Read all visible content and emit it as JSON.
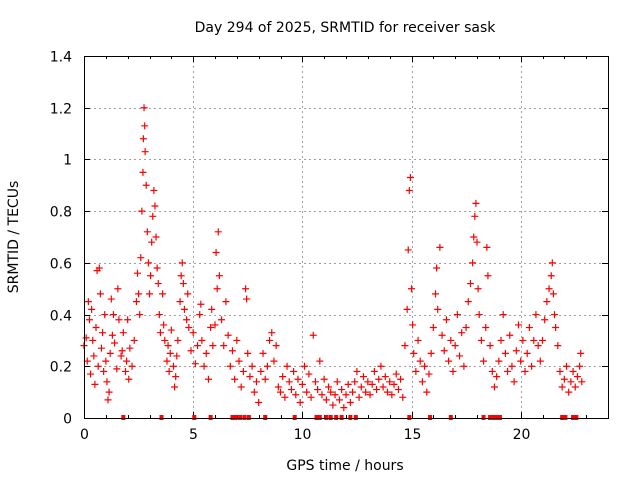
{
  "chart_data": {
    "type": "scatter",
    "title": "Day 294 of 2025, SRMTID for receiver sask",
    "xlabel": "GPS time / hours",
    "ylabel": "SRMTID / TECUs",
    "xlim": [
      0,
      24
    ],
    "ylim": [
      0,
      1.4
    ],
    "x_ticks": [
      0,
      5,
      10,
      15,
      20
    ],
    "y_ticks": [
      0,
      0.2,
      0.4,
      0.6,
      0.8,
      1,
      1.2,
      1.4
    ],
    "x_tick_labels": [
      "0",
      "5",
      "10",
      "15",
      "20"
    ],
    "y_tick_labels": [
      "0",
      "0.2",
      "0.4",
      "0.6",
      "0.8",
      "1",
      "1.2",
      "1.4"
    ],
    "grid": true,
    "marker": "+",
    "color": "#ff0000",
    "series": [
      {
        "name": "SRMTID",
        "points": [
          [
            0.0,
            0.28
          ],
          [
            0.1,
            0.31
          ],
          [
            0.15,
            0.22
          ],
          [
            0.2,
            0.45
          ],
          [
            0.25,
            0.38
          ],
          [
            0.3,
            0.17
          ],
          [
            0.35,
            0.42
          ],
          [
            0.4,
            0.3
          ],
          [
            0.45,
            0.24
          ],
          [
            0.5,
            0.13
          ],
          [
            0.55,
            0.35
          ],
          [
            0.6,
            0.57
          ],
          [
            0.65,
            0.2
          ],
          [
            0.7,
            0.58
          ],
          [
            0.75,
            0.48
          ],
          [
            0.8,
            0.27
          ],
          [
            0.85,
            0.33
          ],
          [
            0.9,
            0.18
          ],
          [
            0.95,
            0.4
          ],
          [
            1.0,
            0.22
          ],
          [
            1.05,
            0.14
          ],
          [
            1.1,
            0.07
          ],
          [
            1.15,
            0.1
          ],
          [
            1.2,
            0.25
          ],
          [
            1.25,
            0.46
          ],
          [
            1.3,
            0.32
          ],
          [
            1.35,
            0.4
          ],
          [
            1.4,
            0.29
          ],
          [
            1.5,
            0.19
          ],
          [
            1.55,
            0.5
          ],
          [
            1.6,
            0.38
          ],
          [
            1.7,
            0.24
          ],
          [
            1.75,
            0.26
          ],
          [
            1.8,
            0.33
          ],
          [
            1.9,
            0.18
          ],
          [
            1.95,
            0.22
          ],
          [
            2.0,
            0.38
          ],
          [
            2.05,
            0.15
          ],
          [
            2.1,
            0.27
          ],
          [
            2.2,
            0.2
          ],
          [
            2.3,
            0.3
          ],
          [
            2.4,
            0.45
          ],
          [
            2.45,
            0.56
          ],
          [
            2.5,
            0.48
          ],
          [
            2.55,
            0.4
          ],
          [
            2.6,
            0.62
          ],
          [
            2.65,
            0.8
          ],
          [
            2.7,
            0.95
          ],
          [
            2.72,
            1.08
          ],
          [
            2.75,
            1.2
          ],
          [
            2.78,
            1.13
          ],
          [
            2.8,
            1.03
          ],
          [
            2.85,
            0.9
          ],
          [
            2.9,
            0.72
          ],
          [
            2.95,
            0.6
          ],
          [
            3.0,
            0.48
          ],
          [
            3.05,
            0.55
          ],
          [
            3.1,
            0.68
          ],
          [
            3.15,
            0.78
          ],
          [
            3.2,
            0.88
          ],
          [
            3.25,
            0.82
          ],
          [
            3.3,
            0.7
          ],
          [
            3.35,
            0.58
          ],
          [
            3.4,
            0.52
          ],
          [
            3.45,
            0.4
          ],
          [
            3.5,
            0.33
          ],
          [
            3.6,
            0.48
          ],
          [
            3.65,
            0.36
          ],
          [
            3.7,
            0.3
          ],
          [
            3.8,
            0.22
          ],
          [
            3.85,
            0.28
          ],
          [
            3.9,
            0.18
          ],
          [
            3.95,
            0.25
          ],
          [
            4.0,
            0.34
          ],
          [
            4.1,
            0.2
          ],
          [
            4.15,
            0.12
          ],
          [
            4.2,
            0.16
          ],
          [
            4.25,
            0.24
          ],
          [
            4.3,
            0.3
          ],
          [
            4.4,
            0.45
          ],
          [
            4.45,
            0.55
          ],
          [
            4.5,
            0.6
          ],
          [
            4.55,
            0.52
          ],
          [
            4.6,
            0.42
          ],
          [
            4.7,
            0.38
          ],
          [
            4.75,
            0.48
          ],
          [
            4.8,
            0.35
          ],
          [
            4.9,
            0.26
          ],
          [
            5.0,
            0.33
          ],
          [
            5.1,
            0.21
          ],
          [
            5.2,
            0.28
          ],
          [
            5.3,
            0.4
          ],
          [
            5.35,
            0.44
          ],
          [
            5.4,
            0.3
          ],
          [
            5.5,
            0.2
          ],
          [
            5.6,
            0.25
          ],
          [
            5.7,
            0.15
          ],
          [
            5.8,
            0.35
          ],
          [
            5.85,
            0.42
          ],
          [
            5.9,
            0.28
          ],
          [
            6.0,
            0.36
          ],
          [
            6.05,
            0.64
          ],
          [
            6.1,
            0.5
          ],
          [
            6.15,
            0.72
          ],
          [
            6.2,
            0.55
          ],
          [
            6.3,
            0.38
          ],
          [
            6.4,
            0.28
          ],
          [
            6.5,
            0.45
          ],
          [
            6.6,
            0.32
          ],
          [
            6.7,
            0.2
          ],
          [
            6.8,
            0.26
          ],
          [
            6.9,
            0.15
          ],
          [
            7.0,
            0.3
          ],
          [
            7.1,
            0.22
          ],
          [
            7.2,
            0.12
          ],
          [
            7.3,
            0.18
          ],
          [
            7.4,
            0.5
          ],
          [
            7.45,
            0.46
          ],
          [
            7.5,
            0.25
          ],
          [
            7.6,
            0.16
          ],
          [
            7.7,
            0.2
          ],
          [
            7.8,
            0.1
          ],
          [
            7.9,
            0.14
          ],
          [
            8.0,
            0.06
          ],
          [
            8.1,
            0.18
          ],
          [
            8.2,
            0.25
          ],
          [
            8.3,
            0.15
          ],
          [
            8.4,
            0.2
          ],
          [
            8.5,
            0.3
          ],
          [
            8.6,
            0.33
          ],
          [
            8.7,
            0.22
          ],
          [
            8.8,
            0.28
          ],
          [
            8.9,
            0.12
          ],
          [
            9.0,
            0.1
          ],
          [
            9.1,
            0.16
          ],
          [
            9.2,
            0.08
          ],
          [
            9.3,
            0.2
          ],
          [
            9.4,
            0.14
          ],
          [
            9.5,
            0.11
          ],
          [
            9.6,
            0.18
          ],
          [
            9.7,
            0.09
          ],
          [
            9.8,
            0.15
          ],
          [
            9.9,
            0.06
          ],
          [
            10.0,
            0.13
          ],
          [
            10.1,
            0.2
          ],
          [
            10.2,
            0.1
          ],
          [
            10.3,
            0.17
          ],
          [
            10.4,
            0.08
          ],
          [
            10.5,
            0.32
          ],
          [
            10.6,
            0.14
          ],
          [
            10.7,
            0.11
          ],
          [
            10.8,
            0.22
          ],
          [
            10.9,
            0.09
          ],
          [
            11.0,
            0.15
          ],
          [
            11.1,
            0.07
          ],
          [
            11.2,
            0.12
          ],
          [
            11.3,
            0.1
          ],
          [
            11.4,
            0.05
          ],
          [
            11.5,
            0.09
          ],
          [
            11.6,
            0.14
          ],
          [
            11.7,
            0.07
          ],
          [
            11.8,
            0.11
          ],
          [
            11.9,
            0.04
          ],
          [
            12.0,
            0.09
          ],
          [
            12.1,
            0.13
          ],
          [
            12.2,
            0.06
          ],
          [
            12.3,
            0.1
          ],
          [
            12.4,
            0.14
          ],
          [
            12.5,
            0.18
          ],
          [
            12.6,
            0.08
          ],
          [
            12.7,
            0.12
          ],
          [
            12.8,
            0.16
          ],
          [
            12.9,
            0.1
          ],
          [
            13.0,
            0.14
          ],
          [
            13.1,
            0.09
          ],
          [
            13.2,
            0.13
          ],
          [
            13.3,
            0.18
          ],
          [
            13.4,
            0.11
          ],
          [
            13.5,
            0.15
          ],
          [
            13.6,
            0.2
          ],
          [
            13.7,
            0.12
          ],
          [
            13.8,
            0.16
          ],
          [
            13.9,
            0.1
          ],
          [
            14.0,
            0.14
          ],
          [
            14.1,
            0.09
          ],
          [
            14.2,
            0.13
          ],
          [
            14.3,
            0.17
          ],
          [
            14.4,
            0.11
          ],
          [
            14.5,
            0.15
          ],
          [
            14.6,
            0.08
          ],
          [
            14.7,
            0.28
          ],
          [
            14.8,
            0.42
          ],
          [
            14.85,
            0.65
          ],
          [
            14.9,
            0.88
          ],
          [
            14.95,
            0.93
          ],
          [
            15.0,
            0.5
          ],
          [
            15.05,
            0.36
          ],
          [
            15.1,
            0.25
          ],
          [
            15.2,
            0.18
          ],
          [
            15.3,
            0.3
          ],
          [
            15.4,
            0.22
          ],
          [
            15.5,
            0.14
          ],
          [
            15.6,
            0.2
          ],
          [
            15.7,
            0.1
          ],
          [
            15.8,
            0.17
          ],
          [
            15.9,
            0.25
          ],
          [
            16.0,
            0.35
          ],
          [
            16.1,
            0.48
          ],
          [
            16.15,
            0.58
          ],
          [
            16.2,
            0.42
          ],
          [
            16.3,
            0.66
          ],
          [
            16.4,
            0.32
          ],
          [
            16.5,
            0.26
          ],
          [
            16.6,
            0.38
          ],
          [
            16.7,
            0.22
          ],
          [
            16.8,
            0.3
          ],
          [
            16.9,
            0.18
          ],
          [
            17.0,
            0.28
          ],
          [
            17.1,
            0.4
          ],
          [
            17.2,
            0.24
          ],
          [
            17.3,
            0.33
          ],
          [
            17.4,
            0.2
          ],
          [
            17.5,
            0.35
          ],
          [
            17.6,
            0.45
          ],
          [
            17.7,
            0.52
          ],
          [
            17.8,
            0.6
          ],
          [
            17.85,
            0.7
          ],
          [
            17.9,
            0.78
          ],
          [
            17.95,
            0.83
          ],
          [
            18.0,
            0.68
          ],
          [
            18.05,
            0.5
          ],
          [
            18.1,
            0.4
          ],
          [
            18.2,
            0.3
          ],
          [
            18.3,
            0.22
          ],
          [
            18.4,
            0.35
          ],
          [
            18.45,
            0.66
          ],
          [
            18.5,
            0.55
          ],
          [
            18.6,
            0.28
          ],
          [
            18.7,
            0.18
          ],
          [
            18.8,
            0.12
          ],
          [
            18.9,
            0.16
          ],
          [
            19.0,
            0.22
          ],
          [
            19.1,
            0.3
          ],
          [
            19.2,
            0.4
          ],
          [
            19.3,
            0.25
          ],
          [
            19.4,
            0.18
          ],
          [
            19.5,
            0.32
          ],
          [
            19.6,
            0.2
          ],
          [
            19.7,
            0.14
          ],
          [
            19.8,
            0.26
          ],
          [
            19.9,
            0.36
          ],
          [
            20.0,
            0.22
          ],
          [
            20.1,
            0.3
          ],
          [
            20.2,
            0.18
          ],
          [
            20.3,
            0.25
          ],
          [
            20.4,
            0.35
          ],
          [
            20.5,
            0.2
          ],
          [
            20.6,
            0.3
          ],
          [
            20.7,
            0.4
          ],
          [
            20.8,
            0.28
          ],
          [
            20.9,
            0.22
          ],
          [
            21.0,
            0.3
          ],
          [
            21.1,
            0.38
          ],
          [
            21.2,
            0.45
          ],
          [
            21.3,
            0.5
          ],
          [
            21.4,
            0.55
          ],
          [
            21.45,
            0.6
          ],
          [
            21.5,
            0.48
          ],
          [
            21.55,
            0.4
          ],
          [
            21.6,
            0.35
          ],
          [
            21.7,
            0.28
          ],
          [
            21.8,
            0.18
          ],
          [
            21.9,
            0.12
          ],
          [
            22.0,
            0.15
          ],
          [
            22.1,
            0.2
          ],
          [
            22.2,
            0.1
          ],
          [
            22.3,
            0.14
          ],
          [
            22.4,
            0.18
          ],
          [
            22.5,
            0.12
          ],
          [
            22.6,
            0.16
          ],
          [
            22.7,
            0.2
          ],
          [
            22.75,
            0.25
          ],
          [
            22.8,
            0.14
          ]
        ]
      }
    ],
    "zero_markers_x": [
      1.8,
      3.55,
      5.05,
      5.8,
      6.8,
      6.95,
      7.15,
      7.35,
      7.55,
      8.3,
      9.65,
      10.65,
      10.8,
      11.1,
      11.3,
      11.55,
      11.8,
      12.2,
      12.45,
      14.9,
      15.85,
      16.8,
      18.3,
      18.6,
      18.75,
      18.9,
      19.05,
      21.9,
      22.05,
      22.4,
      22.55
    ]
  }
}
